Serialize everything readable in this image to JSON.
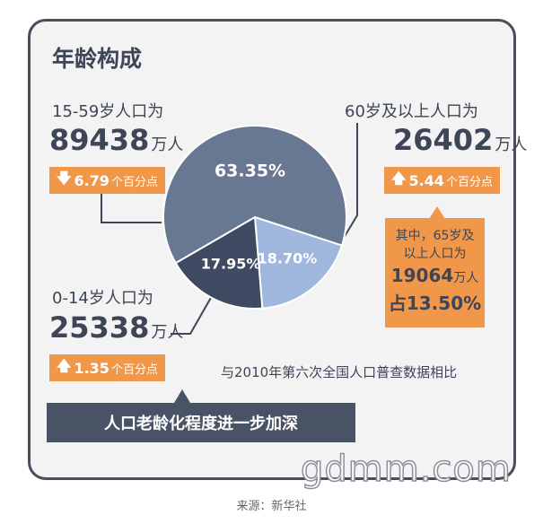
{
  "title": "年龄构成",
  "chart_data": {
    "type": "pie",
    "slices": [
      {
        "label": "15-59岁",
        "value": 63.35,
        "text": "63.35%",
        "color": "#687792"
      },
      {
        "label": "60岁及以上",
        "value": 18.7,
        "text": "18.70%",
        "color": "#9fb7dd"
      },
      {
        "label": "0-14岁",
        "value": 17.95,
        "text": "17.95%",
        "color": "#3e4a62"
      }
    ]
  },
  "groups": {
    "working": {
      "label": "15-59岁人口为",
      "number": "89438",
      "unit": "万人",
      "change_arrow": "down",
      "change_value": "6.79",
      "change_text": "个百分点"
    },
    "elderly": {
      "label": "60岁及以上人口为",
      "number": "26402",
      "unit": "万人",
      "change_arrow": "up",
      "change_value": "5.44",
      "change_text": "个百分点"
    },
    "children": {
      "label": "0-14岁人口为",
      "number": "25338",
      "unit": "万人",
      "change_arrow": "up",
      "change_value": "1.35",
      "change_text": "个百分点"
    }
  },
  "note": {
    "line1": "其中，65岁及",
    "line2": "以上人口为",
    "number": "19064",
    "unit": "万人",
    "share": "占13.50%"
  },
  "comparison": "与2010年第六次全国人口普查数据相比",
  "banner": "人口老龄化程度进一步加深",
  "watermark": "gdmm.com",
  "source": "来源：新华社",
  "colors": {
    "accent": "#f0974a",
    "dark": "#495366"
  }
}
